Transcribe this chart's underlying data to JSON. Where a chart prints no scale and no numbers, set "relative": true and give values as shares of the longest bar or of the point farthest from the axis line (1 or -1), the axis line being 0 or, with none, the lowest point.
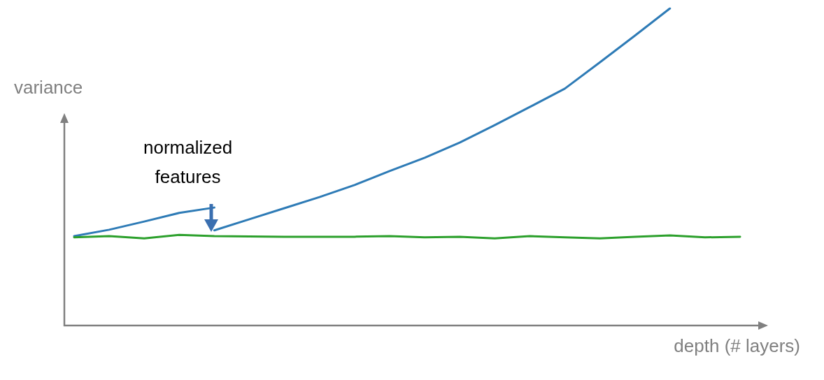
{
  "chart_data": {
    "type": "line",
    "relative": true,
    "xlabel": "depth (# layers)",
    "ylabel": "variance",
    "annotations": [
      "normalized\nfeatures"
    ],
    "tick_labels": false,
    "grid": false,
    "marker": "none",
    "line_style": "solid",
    "categories": [
      null,
      null,
      null,
      null,
      null,
      null,
      null,
      null,
      null,
      null,
      null,
      null,
      null,
      null,
      null,
      null,
      null,
      null,
      null,
      null
    ],
    "series": [
      {
        "color": "#2e7bb6",
        "values": [
          0.282,
          0.302,
          0.328,
          0.355,
          0.372,
          null,
          null,
          null,
          null,
          null,
          null,
          null,
          null,
          null,
          null,
          null,
          null,
          null,
          null,
          null
        ]
      },
      {
        "color": "#2e7bb6",
        "values": [
          null,
          null,
          null,
          null,
          0.3,
          0.335,
          0.37,
          0.405,
          0.443,
          0.487,
          0.529,
          0.577,
          0.632,
          0.689,
          0.747,
          0.83,
          0.914,
          1.0,
          null,
          null
        ]
      },
      {
        "color": "#2ca02c",
        "values": [
          0.278,
          0.282,
          0.275,
          0.286,
          0.282,
          0.281,
          0.28,
          0.28,
          0.28,
          0.282,
          0.278,
          0.28,
          0.275,
          0.282,
          0.278,
          0.275,
          0.28,
          0.284,
          0.278,
          0.28
        ]
      }
    ]
  }
}
